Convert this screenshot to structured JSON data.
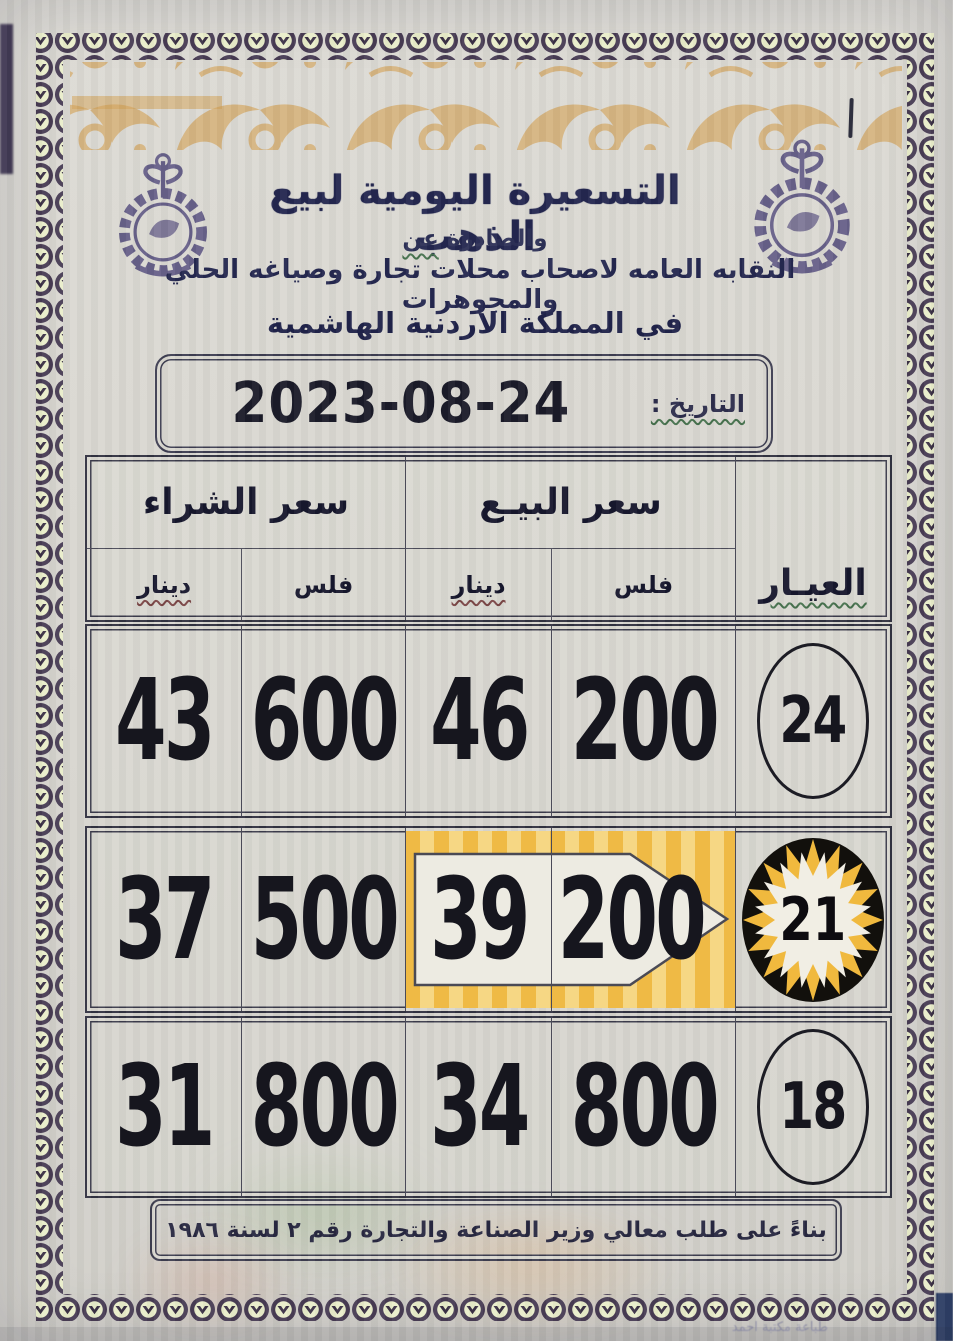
{
  "header": {
    "title": "التسعيرة اليومية لبيع الذهب",
    "issued_by_prefix": "والصادرة",
    "issued_by_word": "عن",
    "organization": "النقابه العامه لاصحاب محلات تجارة وصياغه الحلي والمجوهرات",
    "country": "في المملكة الأردنية الهاشمية"
  },
  "date": {
    "label": "التاريخ :",
    "value": "2023-08-24"
  },
  "table": {
    "buy_header": "سعر الشراء",
    "sell_header": "سعر البيـع",
    "karat_header": "العيـار",
    "dinar_label": "دينار",
    "fils_label": "فلس",
    "rows": [
      {
        "buy_dinar": "43",
        "buy_fils": "600",
        "sell_dinar": "46",
        "sell_fils": "200",
        "karat": "24",
        "highlighted": false
      },
      {
        "buy_dinar": "37",
        "buy_fils": "500",
        "sell_dinar": "39",
        "sell_fils": "200",
        "karat": "21",
        "highlighted": true
      },
      {
        "buy_dinar": "31",
        "buy_fils": "800",
        "sell_dinar": "34",
        "sell_fils": "800",
        "karat": "18",
        "highlighted": false
      }
    ]
  },
  "footer": {
    "note": "بناءً على طلب معالي وزير الصناعة والتجارة رقم ٢ لسنة ١٩٨٦"
  },
  "print_credit": "طباعة مكتبة احمد",
  "colors": {
    "highlight_yellow": "#efba45",
    "highlight_yellow_light": "#f6d784",
    "title_navy": "#22254e",
    "chain_dark": "#4a3a52",
    "ornament_gold": "#d2a055",
    "paper": "#d7d5cf"
  }
}
